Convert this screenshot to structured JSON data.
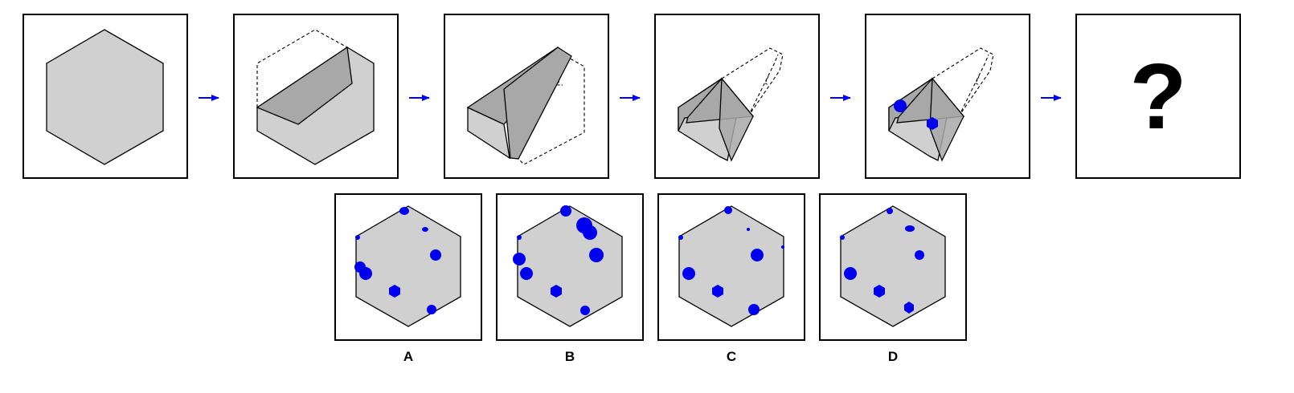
{
  "question_mark": "?",
  "options": [
    {
      "label": "A"
    },
    {
      "label": "B"
    },
    {
      "label": "C"
    },
    {
      "label": "D"
    }
  ],
  "colors": {
    "paper": "#d0d0d0",
    "paper_dark": "#a8a8a8",
    "hole": "#0000ee",
    "arrow": "#0000ff",
    "stroke": "#000000"
  }
}
